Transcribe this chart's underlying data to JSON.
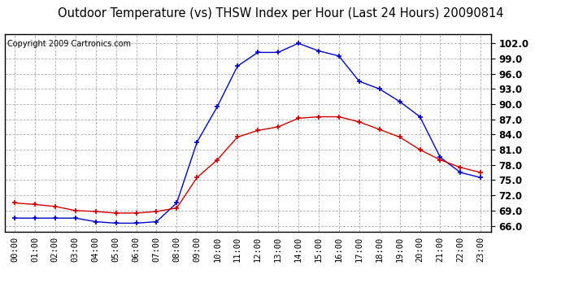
{
  "title": "Outdoor Temperature (vs) THSW Index per Hour (Last 24 Hours) 20090814",
  "copyright": "Copyright 2009 Cartronics.com",
  "hours": [
    "00:00",
    "01:00",
    "02:00",
    "03:00",
    "04:00",
    "05:00",
    "06:00",
    "07:00",
    "08:00",
    "09:00",
    "10:00",
    "11:00",
    "12:00",
    "13:00",
    "14:00",
    "15:00",
    "16:00",
    "17:00",
    "18:00",
    "19:00",
    "20:00",
    "21:00",
    "22:00",
    "23:00"
  ],
  "temp_red": [
    70.5,
    70.2,
    69.8,
    69.0,
    68.8,
    68.5,
    68.5,
    68.8,
    69.5,
    75.5,
    79.0,
    83.5,
    84.8,
    85.5,
    87.2,
    87.5,
    87.5,
    86.5,
    85.0,
    83.5,
    81.0,
    79.0,
    77.5,
    76.5
  ],
  "thsw_blue": [
    67.5,
    67.5,
    67.5,
    67.5,
    66.8,
    66.5,
    66.5,
    66.8,
    70.5,
    82.5,
    89.5,
    97.5,
    100.2,
    100.2,
    102.0,
    100.5,
    99.5,
    94.5,
    93.0,
    90.5,
    87.5,
    79.5,
    76.5,
    75.5
  ],
  "y_ticks": [
    66.0,
    69.0,
    72.0,
    75.0,
    78.0,
    81.0,
    84.0,
    87.0,
    90.0,
    93.0,
    96.0,
    99.0,
    102.0
  ],
  "ymin": 64.8,
  "ymax": 103.8,
  "bg_color": "#ffffff",
  "plot_bg_color": "#ffffff",
  "grid_color": "#b0b0b0",
  "red_color": "#cc0000",
  "blue_color": "#0000cc",
  "title_fontsize": 10.5,
  "copyright_fontsize": 7,
  "tick_fontsize": 8.5,
  "xtick_fontsize": 7.5
}
